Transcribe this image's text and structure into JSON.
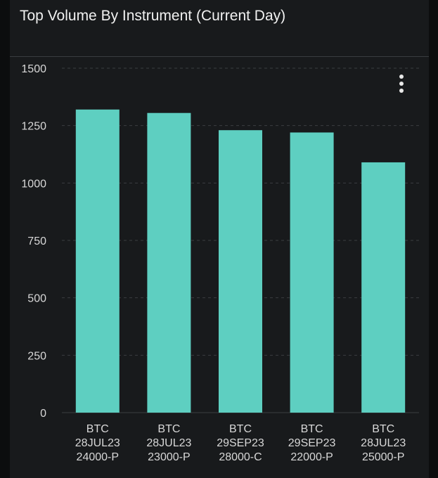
{
  "panel": {
    "title": "Top Volume By Instrument (Current Day)",
    "menu_icon": "more-vertical-icon"
  },
  "colors": {
    "bar": "#5ecfc1",
    "grid": "#3a3d40",
    "background": "#181a1c",
    "text": "#d8d8d8"
  },
  "chart_data": {
    "type": "bar",
    "title": "Top Volume By Instrument (Current Day)",
    "xlabel": "",
    "ylabel": "",
    "ylim": [
      0,
      1500
    ],
    "yticks": [
      0,
      250,
      500,
      750,
      1000,
      1250,
      1500
    ],
    "grid": true,
    "categories": [
      [
        "BTC",
        "28JUL23",
        "24000-P"
      ],
      [
        "BTC",
        "28JUL23",
        "23000-P"
      ],
      [
        "BTC",
        "29SEP23",
        "28000-C"
      ],
      [
        "BTC",
        "29SEP23",
        "22000-P"
      ],
      [
        "BTC",
        "28JUL23",
        "25000-P"
      ]
    ],
    "values": [
      1320,
      1305,
      1230,
      1220,
      1090
    ]
  }
}
